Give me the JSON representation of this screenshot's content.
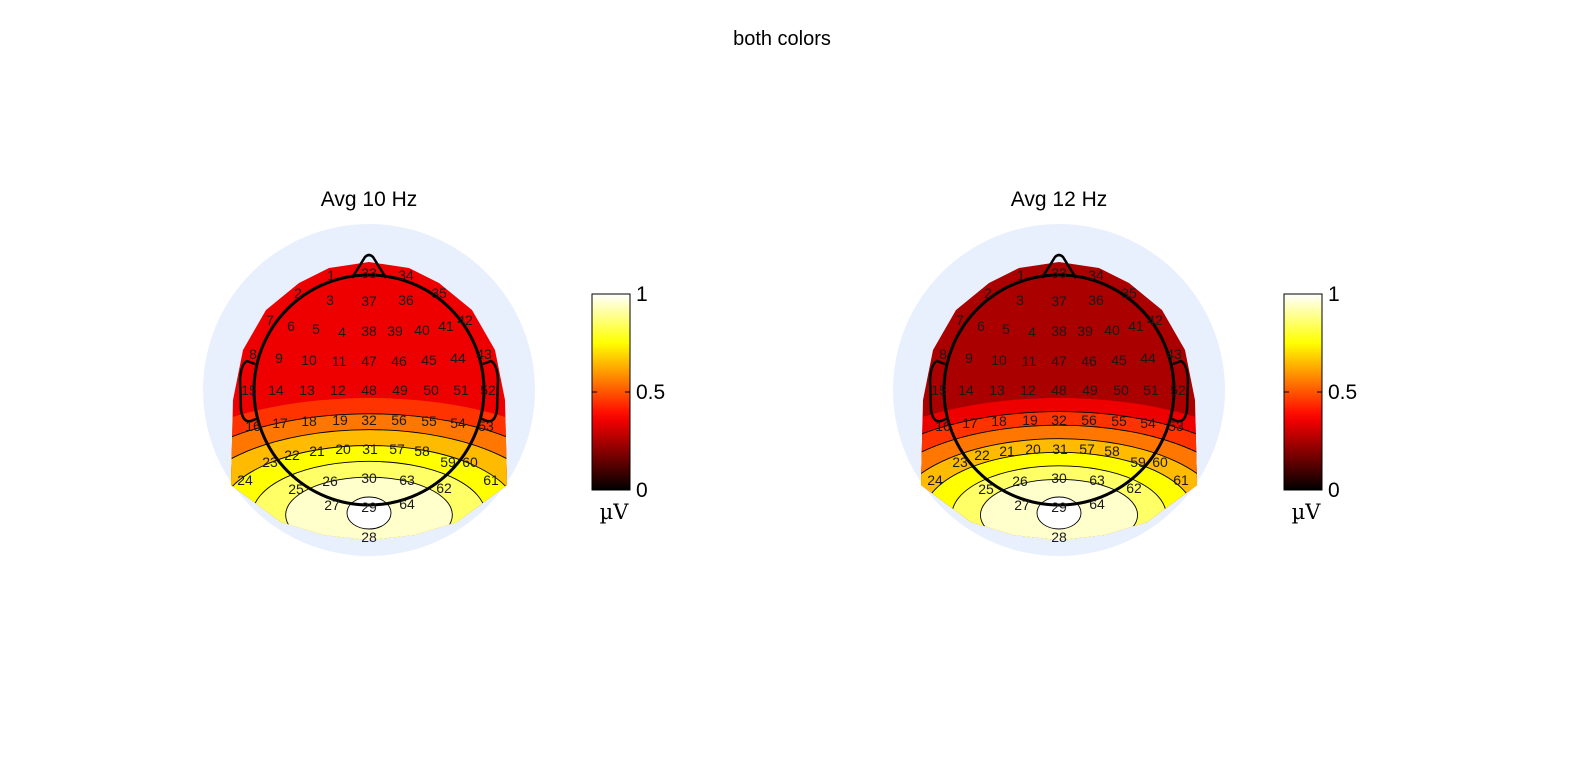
{
  "figure": {
    "suptitle": "both colors"
  },
  "colors": {
    "outer_disk": "#e9f0fd",
    "outline": "#000000",
    "background": "#ffffff"
  },
  "chart_data": [
    {
      "type": "heatmap",
      "title": "Avg 10 Hz",
      "colormap": "hot",
      "clim": [
        0,
        1
      ],
      "colorbar": {
        "ticks": [
          0,
          0.5,
          1
        ],
        "tick_labels": [
          "0",
          "0.5",
          "1"
        ],
        "unit": "µV"
      },
      "base_level": 0.35,
      "peak": {
        "electrode": "29",
        "value": 1.0
      },
      "contour_levels": [
        0.45,
        0.55,
        0.65,
        0.75,
        0.85,
        0.95
      ],
      "electrodes": [
        "1",
        "33",
        "34",
        "2",
        "3",
        "37",
        "36",
        "35",
        "7",
        "6",
        "5",
        "4",
        "38",
        "39",
        "40",
        "41",
        "42",
        "8",
        "9",
        "10",
        "11",
        "47",
        "46",
        "45",
        "44",
        "43",
        "15",
        "14",
        "13",
        "12",
        "48",
        "49",
        "50",
        "51",
        "52",
        "16",
        "17",
        "18",
        "19",
        "32",
        "56",
        "55",
        "54",
        "53",
        "23",
        "22",
        "21",
        "20",
        "31",
        "57",
        "58",
        "59",
        "60",
        "24",
        "25",
        "26",
        "30",
        "63",
        "62",
        "61",
        "27",
        "29",
        "64",
        "28"
      ]
    },
    {
      "type": "heatmap",
      "title": "Avg 12 Hz",
      "colormap": "hot",
      "clim": [
        0,
        1
      ],
      "colorbar": {
        "ticks": [
          0,
          0.5,
          1
        ],
        "tick_labels": [
          "0",
          "0.5",
          "1"
        ],
        "unit": "µV"
      },
      "base_level": 0.25,
      "peak": {
        "electrode": "29",
        "value": 1.0
      },
      "contour_levels": [
        0.35,
        0.45,
        0.55,
        0.65,
        0.75,
        0.85,
        0.95
      ],
      "electrodes": [
        "1",
        "33",
        "34",
        "2",
        "3",
        "37",
        "36",
        "35",
        "7",
        "6",
        "5",
        "4",
        "38",
        "39",
        "40",
        "41",
        "42",
        "8",
        "9",
        "10",
        "11",
        "47",
        "46",
        "45",
        "44",
        "43",
        "15",
        "14",
        "13",
        "12",
        "48",
        "49",
        "50",
        "51",
        "52",
        "16",
        "17",
        "18",
        "19",
        "32",
        "56",
        "55",
        "54",
        "53",
        "23",
        "22",
        "21",
        "20",
        "31",
        "57",
        "58",
        "59",
        "60",
        "24",
        "25",
        "26",
        "30",
        "63",
        "62",
        "61",
        "27",
        "29",
        "64",
        "28"
      ]
    }
  ]
}
